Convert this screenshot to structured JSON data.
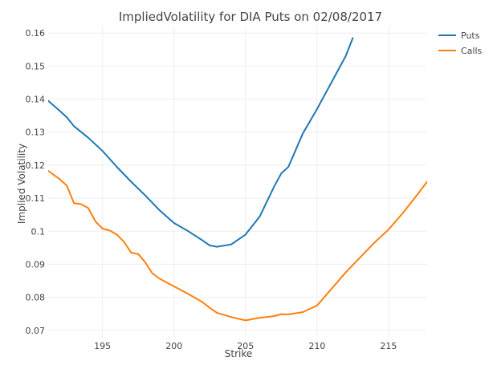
{
  "chart_data": {
    "type": "line",
    "title": "ImpliedVolatility for DIA Puts on 02/08/2017",
    "xlabel": "Strike",
    "ylabel": "Implied Volatility",
    "xlim": [
      191.2,
      217.7
    ],
    "ylim": [
      0.068,
      0.162
    ],
    "xticks": [
      195,
      200,
      205,
      210,
      215
    ],
    "yticks": [
      0.07,
      0.08,
      0.09,
      0.1,
      0.11,
      0.12,
      0.13,
      0.14,
      0.15,
      0.16
    ],
    "xtick_labels": [
      "195",
      "200",
      "205",
      "210",
      "215"
    ],
    "ytick_labels": [
      "0.07",
      "0.08",
      "0.09",
      "0.1",
      "0.11",
      "0.12",
      "0.13",
      "0.14",
      "0.15",
      "0.16"
    ],
    "grid": true,
    "legend_position": "top-right",
    "series": [
      {
        "name": "Puts",
        "color": "#1f77b4",
        "x": [
          191.2,
          192,
          192.5,
          193,
          194,
          195,
          196,
          197,
          198,
          199,
          200,
          201,
          202,
          202.5,
          203,
          204,
          205,
          206,
          207,
          207.5,
          208,
          209,
          210,
          211,
          212,
          212.5
        ],
        "y": [
          0.1395,
          0.1365,
          0.1345,
          0.1318,
          0.1283,
          0.1243,
          0.1195,
          0.115,
          0.1108,
          0.1063,
          0.1025,
          0.1,
          0.0972,
          0.0957,
          0.0953,
          0.096,
          0.099,
          0.1045,
          0.1135,
          0.1175,
          0.1195,
          0.1295,
          0.137,
          0.145,
          0.153,
          0.1585
        ]
      },
      {
        "name": "Calls",
        "color": "#ff7f0e",
        "x": [
          191.2,
          192,
          192.5,
          193,
          193.5,
          194,
          194.5,
          195,
          195.5,
          196,
          196.5,
          197,
          197.5,
          198,
          198.5,
          199,
          200,
          201,
          202,
          202.5,
          203,
          204,
          205,
          206,
          207,
          207.5,
          208,
          209,
          210,
          211,
          212,
          213,
          214,
          215,
          216,
          217,
          217.7
        ],
        "y": [
          0.1183,
          0.1158,
          0.1138,
          0.1085,
          0.1082,
          0.107,
          0.103,
          0.1008,
          0.1002,
          0.099,
          0.0968,
          0.0935,
          0.0931,
          0.0905,
          0.0872,
          0.0856,
          0.0833,
          0.081,
          0.0785,
          0.0768,
          0.0753,
          0.074,
          0.073,
          0.0738,
          0.0743,
          0.0749,
          0.0748,
          0.0755,
          0.0775,
          0.0825,
          0.0875,
          0.092,
          0.0965,
          0.1005,
          0.1055,
          0.111,
          0.115
        ]
      }
    ]
  }
}
